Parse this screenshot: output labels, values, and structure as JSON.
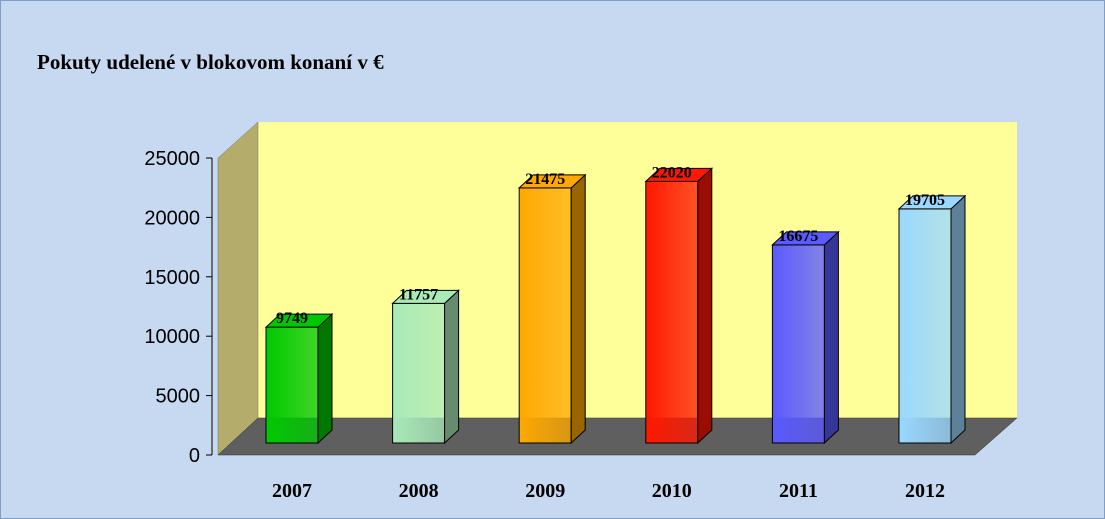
{
  "chart_data": {
    "type": "bar3d",
    "title": "Pokuty udelené v blokovom konaní  v €",
    "categories": [
      "2007",
      "2008",
      "2009",
      "2010",
      "2011",
      "2012"
    ],
    "values": [
      9749,
      11757,
      21475,
      22020,
      16675,
      19705
    ],
    "colors": [
      "#00c800",
      "#a8eab8",
      "#ffa800",
      "#ff1800",
      "#5a5aff",
      "#9ad8ff"
    ],
    "ylim": [
      0,
      25000
    ],
    "yticks": [
      0,
      5000,
      10000,
      15000,
      20000,
      25000
    ],
    "grid": false
  }
}
